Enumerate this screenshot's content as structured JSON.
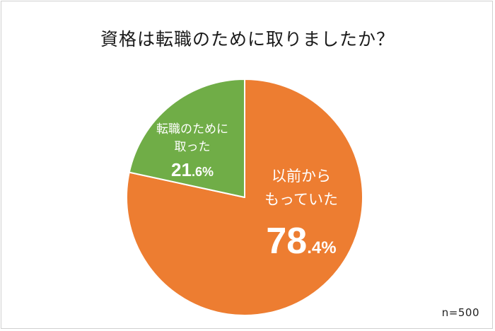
{
  "chart_data": {
    "type": "pie",
    "title": "資格は転職のために取りましたか？",
    "slices": [
      {
        "label_lines": [
          "以前から",
          "もっていた"
        ],
        "value": 78.4,
        "value_int": "78",
        "value_dec": ".4%",
        "color": "#ed7d31"
      },
      {
        "label_lines": [
          "転職のために",
          "取った"
        ],
        "value": 21.6,
        "value_int": "21",
        "value_dec": ".6%",
        "color": "#70ad47"
      }
    ],
    "start_angle_deg": 0,
    "direction": "clockwise",
    "note": "n=500"
  }
}
